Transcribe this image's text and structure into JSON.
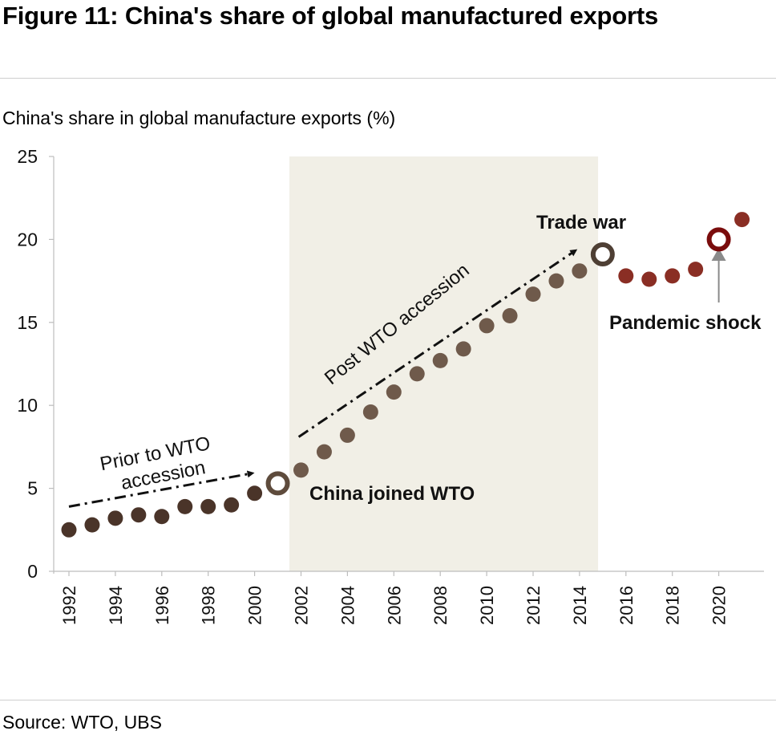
{
  "header": {
    "title": "Figure 11: China's share of global manufactured exports"
  },
  "footer": {
    "source": "Source: WTO, UBS"
  },
  "chart_data": {
    "type": "scatter",
    "title": "Figure 11: China's share of global manufactured exports",
    "ylabel": "China's share in global manufacture exports (%)",
    "xlabel": "",
    "ylim": [
      0,
      25
    ],
    "yticks": [
      0,
      5,
      10,
      15,
      20,
      25
    ],
    "xlim": [
      1992,
      2021
    ],
    "xticks": [
      1992,
      1994,
      1996,
      1998,
      2000,
      2002,
      2004,
      2006,
      2008,
      2010,
      2012,
      2014,
      2016,
      2018,
      2020
    ],
    "grid": false,
    "shaded_region": {
      "from": 2001.5,
      "to": 2014.8,
      "color": "#f1efe6"
    },
    "series": [
      {
        "x": [
          1992,
          1993,
          1994,
          1995,
          1996,
          1997,
          1998,
          1999,
          2000,
          2001,
          2002,
          2003,
          2004,
          2005,
          2006,
          2007,
          2008,
          2009,
          2010,
          2011,
          2012,
          2013,
          2014,
          2015,
          2016,
          2017,
          2018,
          2019,
          2020,
          2021
        ],
        "values": [
          2.5,
          2.8,
          3.2,
          3.4,
          3.3,
          3.9,
          3.9,
          4.0,
          4.7,
          5.3,
          6.1,
          7.2,
          8.2,
          9.6,
          10.8,
          11.9,
          12.7,
          13.4,
          14.8,
          15.4,
          16.7,
          17.5,
          18.1,
          19.1,
          17.8,
          17.6,
          17.8,
          18.2,
          20.0,
          21.2
        ]
      }
    ],
    "highlighted_points": [
      {
        "x": 2001,
        "y": 5.3,
        "color": "#5e4b3c"
      },
      {
        "x": 2015,
        "y": 19.1,
        "color": "#4e3f34"
      },
      {
        "x": 2020,
        "y": 20.0,
        "color": "#7a0c0c"
      }
    ],
    "colors": {
      "pre_wto": "#4a3429",
      "post_wto": "#6f5a4b",
      "post_trade_war": "#8a2e24",
      "shade": "#f1efe6",
      "axis": "#bdbdbd"
    },
    "annotations": [
      {
        "text": "China joined WTO",
        "bold": true
      },
      {
        "text": "Trade war",
        "bold": true
      },
      {
        "text": "Pandemic shock",
        "bold": true
      },
      {
        "text_lines": [
          "Prior to WTO",
          "accession"
        ],
        "bold": false
      },
      {
        "text": "Post WTO accession",
        "bold": false
      }
    ]
  }
}
